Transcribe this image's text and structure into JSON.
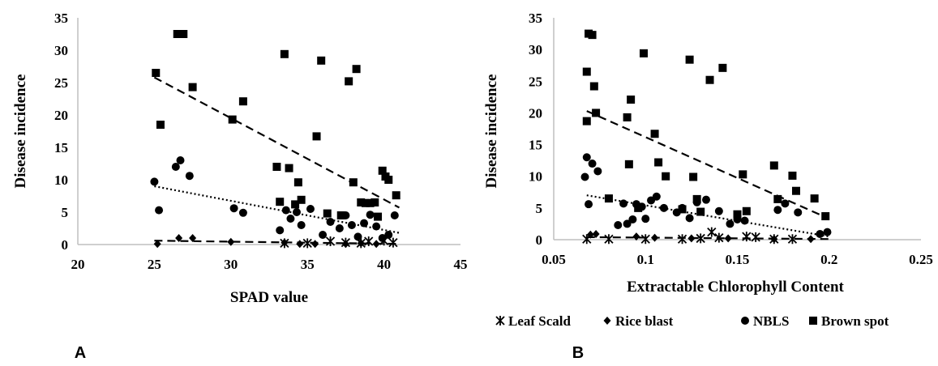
{
  "chart_data": [
    {
      "type": "scatter",
      "panel_label": "A",
      "xlabel": "SPAD value",
      "ylabel": "Disease incidence",
      "xlim": [
        20,
        45
      ],
      "ylim": [
        0,
        35
      ],
      "x_ticks": [
        "20",
        "25",
        "30",
        "35",
        "40",
        "45"
      ],
      "y_ticks": [
        "0",
        "5",
        "10",
        "15",
        "20",
        "25",
        "30",
        "35"
      ],
      "grid": false,
      "series": [
        {
          "name": "Brown spot",
          "marker": "square",
          "x": [
            25.1,
            25.4,
            26.5,
            26.9,
            27.5,
            30.1,
            30.8,
            33.0,
            33.5,
            33.8,
            34.4,
            34.6,
            33.2,
            34.2,
            35.6,
            35.9,
            36.3,
            37.2,
            37.7,
            38.0,
            38.2,
            38.5,
            38.8,
            39.1,
            39.4,
            39.6,
            39.9,
            40.1,
            40.3,
            40.8
          ],
          "y": [
            26.5,
            18.5,
            32.5,
            32.5,
            24.3,
            19.3,
            22.1,
            12,
            29.4,
            11.8,
            9.6,
            6.9,
            6.6,
            6.2,
            16.7,
            28.4,
            4.8,
            4.5,
            25.2,
            9.6,
            27.1,
            6.5,
            6.4,
            6.4,
            6.5,
            4.3,
            11.4,
            10.5,
            10.0,
            7.6
          ],
          "trend": [
            [
              25,
              25.8
            ],
            [
              41,
              5.7
            ]
          ],
          "trend_style": "dashed"
        },
        {
          "name": "NBLS",
          "marker": "circle",
          "x": [
            25.0,
            25.3,
            26.4,
            26.7,
            27.3,
            30.2,
            30.8,
            33.2,
            33.6,
            33.9,
            34.3,
            34.6,
            35.2,
            36.0,
            36.5,
            37.1,
            37.5,
            37.9,
            38.3,
            38.7,
            39.1,
            39.5,
            39.9,
            40.3,
            40.7
          ],
          "y": [
            9.7,
            5.3,
            12,
            13,
            10.6,
            5.6,
            4.9,
            2.2,
            5.3,
            4.0,
            5.0,
            3.0,
            5.5,
            1.5,
            3.5,
            2.5,
            4.5,
            3.0,
            1.2,
            3.3,
            4.6,
            2.8,
            1.0,
            1.5,
            4.5
          ],
          "trend": [
            [
              25,
              9.0
            ],
            [
              41,
              1.8
            ]
          ],
          "trend_style": "dotted"
        },
        {
          "name": "Rice blast",
          "marker": "diamond",
          "x": [
            25.2,
            26.6,
            27.5,
            30.0,
            33.5,
            34.5,
            35.5,
            37.5,
            38.5,
            39.5
          ],
          "y": [
            0.1,
            1.0,
            1.0,
            0.4,
            0.3,
            0.1,
            0.1,
            0.1,
            0.2,
            0.1
          ],
          "trend": [
            [
              25,
              0.6
            ],
            [
              41,
              0.1
            ]
          ],
          "trend_style": "dashed"
        },
        {
          "name": "Leaf Scald",
          "marker": "asterisk",
          "x": [
            33.5,
            35.0,
            36.5,
            37.5,
            38.5,
            39.0,
            40.0,
            40.6
          ],
          "y": [
            0.2,
            0.2,
            0.5,
            0.3,
            0.2,
            0.5,
            0.6,
            0.3
          ],
          "trend": null,
          "trend_style": "none"
        }
      ]
    },
    {
      "type": "scatter",
      "panel_label": "B",
      "xlabel": "Extractable Chlorophyll Content",
      "ylabel": "Disease incidence",
      "xlim": [
        0.05,
        0.25
      ],
      "ylim": [
        0,
        35
      ],
      "x_ticks": [
        "0.05",
        "0.1",
        "0.15",
        "0.2",
        "0.25"
      ],
      "y_ticks": [
        "0",
        "5",
        "10",
        "15",
        "20",
        "25",
        "30",
        "35"
      ],
      "grid": false,
      "legend_position": "bottom",
      "legend": [
        "Leaf Scald",
        "Rice blast",
        "NBLS",
        "Brown spot"
      ],
      "series": [
        {
          "name": "Brown spot",
          "marker": "square",
          "x": [
            0.068,
            0.068,
            0.069,
            0.071,
            0.072,
            0.073,
            0.08,
            0.09,
            0.091,
            0.092,
            0.096,
            0.099,
            0.105,
            0.107,
            0.111,
            0.12,
            0.124,
            0.126,
            0.128,
            0.13,
            0.135,
            0.142,
            0.15,
            0.153,
            0.155,
            0.17,
            0.172,
            0.18,
            0.182,
            0.192,
            0.198
          ],
          "y": [
            26.5,
            18.7,
            32.5,
            32.3,
            24.2,
            20,
            6.5,
            19.3,
            11.9,
            22.1,
            5.0,
            29.4,
            16.7,
            12.2,
            10.0,
            4.8,
            28.4,
            9.9,
            6.4,
            4.4,
            25.2,
            27.1,
            4.0,
            10.3,
            4.5,
            11.7,
            6.4,
            10.1,
            7.7,
            6.5,
            3.7
          ],
          "trend": [
            [
              0.068,
              20.3
            ],
            [
              0.2,
              3.3
            ]
          ],
          "trend_style": "dashed"
        },
        {
          "name": "NBLS",
          "marker": "circle",
          "x": [
            0.067,
            0.068,
            0.069,
            0.071,
            0.074,
            0.085,
            0.088,
            0.09,
            0.093,
            0.095,
            0.098,
            0.1,
            0.103,
            0.106,
            0.11,
            0.117,
            0.12,
            0.124,
            0.128,
            0.133,
            0.14,
            0.146,
            0.15,
            0.154,
            0.172,
            0.176,
            0.183,
            0.195,
            0.199
          ],
          "y": [
            9.9,
            13.0,
            5.6,
            12.0,
            10.8,
            2.3,
            5.7,
            2.5,
            3.2,
            5.6,
            5.2,
            3.3,
            6.2,
            6.8,
            5.0,
            4.3,
            5.0,
            3.4,
            5.9,
            6.3,
            4.5,
            2.5,
            3.2,
            3.0,
            4.7,
            5.7,
            4.3,
            0.9,
            1.2
          ],
          "trend": [
            [
              0.068,
              7.0
            ],
            [
              0.2,
              0.5
            ]
          ],
          "trend_style": "dotted"
        },
        {
          "name": "Rice blast",
          "marker": "diamond",
          "x": [
            0.07,
            0.073,
            0.095,
            0.105,
            0.125,
            0.145,
            0.17,
            0.19
          ],
          "y": [
            0.8,
            0.9,
            0.5,
            0.3,
            0.2,
            0.2,
            0.1,
            0.1
          ],
          "trend": [
            [
              0.068,
              0.4
            ],
            [
              0.2,
              0.1
            ]
          ],
          "trend_style": "dashed"
        },
        {
          "name": "Leaf Scald",
          "marker": "asterisk",
          "x": [
            0.068,
            0.08,
            0.1,
            0.12,
            0.13,
            0.136,
            0.14,
            0.155,
            0.16,
            0.17,
            0.18
          ],
          "y": [
            0.1,
            0.1,
            0.1,
            0.1,
            0.2,
            1.2,
            0.3,
            0.5,
            0.4,
            0.1,
            0.1
          ],
          "trend": null,
          "trend_style": "none"
        }
      ]
    }
  ]
}
